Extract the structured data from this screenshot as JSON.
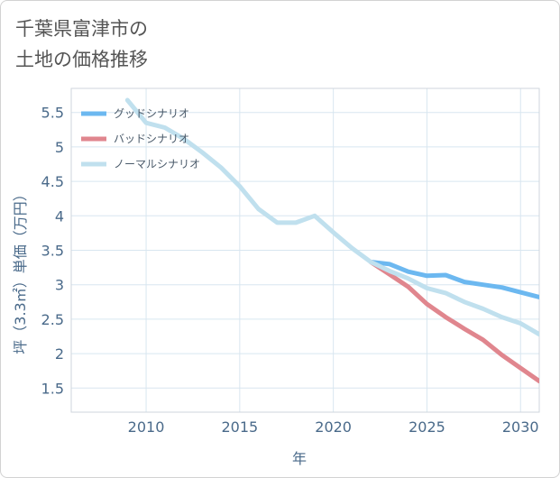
{
  "title": "千葉県富津市の\n土地の価格推移",
  "chart_data": {
    "type": "line",
    "xlabel": "年",
    "ylabel": "坪（3.3㎡）単価（万円）",
    "xlim": [
      2006,
      2031
    ],
    "ylim": [
      1.15,
      5.85
    ],
    "xticks": [
      2010,
      2015,
      2020,
      2025,
      2030
    ],
    "yticks": [
      1.5,
      2,
      2.5,
      3,
      3.5,
      4,
      4.5,
      5,
      5.5
    ],
    "ytick_labels": [
      "1.5",
      "2",
      "2.5",
      "3",
      "3.5",
      "4",
      "4.5",
      "5",
      "5.5"
    ],
    "grid": true,
    "legend_position": "top-left",
    "series": [
      {
        "name": "グッドシナリオ",
        "color": "#6cb8f0",
        "x": [
          2022,
          2023,
          2024,
          2025,
          2026,
          2027,
          2028,
          2029,
          2030,
          2031
        ],
        "values": [
          3.33,
          3.3,
          3.19,
          3.13,
          3.14,
          3.04,
          3.0,
          2.96,
          2.89,
          2.82
        ]
      },
      {
        "name": "バッドシナリオ",
        "color": "#e0868e",
        "x": [
          2022,
          2023,
          2024,
          2025,
          2026,
          2027,
          2028,
          2029,
          2030,
          2031
        ],
        "values": [
          3.33,
          3.15,
          2.97,
          2.72,
          2.53,
          2.36,
          2.2,
          1.98,
          1.79,
          1.6
        ]
      },
      {
        "name": "ノーマルシナリオ",
        "color": "#c0e0ee",
        "x": [
          2009,
          2010,
          2011,
          2012,
          2013,
          2014,
          2015,
          2016,
          2017,
          2018,
          2019,
          2020,
          2021,
          2022,
          2023,
          2024,
          2025,
          2026,
          2027,
          2028,
          2029,
          2030,
          2031
        ],
        "values": [
          5.68,
          5.35,
          5.28,
          5.12,
          4.92,
          4.7,
          4.43,
          4.1,
          3.9,
          3.9,
          4.0,
          3.76,
          3.53,
          3.33,
          3.2,
          3.09,
          2.95,
          2.88,
          2.75,
          2.65,
          2.53,
          2.44,
          2.28
        ]
      }
    ]
  }
}
